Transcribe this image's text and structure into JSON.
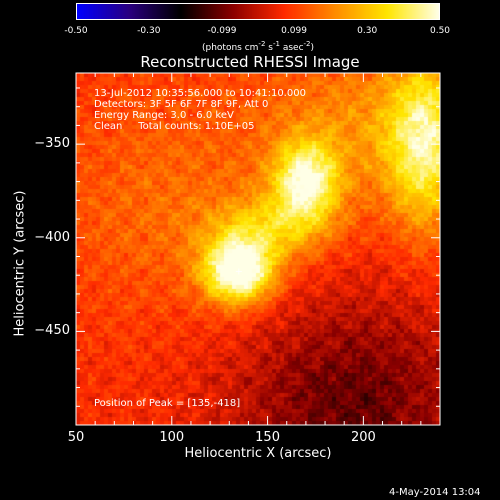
{
  "chart_data": {
    "type": "heatmap",
    "title": "Reconstructed RHESSI Image",
    "xlabel": "Heliocentric X (arcsec)",
    "ylabel": "Heliocentric Y (arcsec)",
    "xlim": [
      50,
      240
    ],
    "ylim": [
      -500,
      -312
    ],
    "x_ticks": [
      "50",
      "100",
      "150",
      "200"
    ],
    "x_tick_values": [
      50,
      100,
      150,
      200
    ],
    "y_ticks": [
      "-350",
      "-400",
      "-450"
    ],
    "y_tick_values": [
      -350,
      -400,
      -450
    ],
    "colorbar": {
      "range": [
        -0.5,
        0.5
      ],
      "tick_labels": [
        "-0.50",
        "-0.30",
        "-0.099",
        "0.099",
        "0.30",
        "0.50"
      ],
      "tick_values": [
        -0.5,
        -0.3,
        -0.099,
        0.099,
        0.3,
        0.5
      ],
      "units_parts": [
        "(photons cm",
        "-2",
        " s",
        "-1",
        " asec",
        "-2",
        ")"
      ],
      "colormap": [
        "#0000ff",
        "#2a0080",
        "#000000",
        "#8a0000",
        "#ff2a00",
        "#ff8c00",
        "#ffe600",
        "#ffffe6"
      ]
    },
    "annotations": [
      "13-Jul-2012 10:35:56.000 to 10:41:10.000",
      "Detectors: 3F 5F 6F 7F 8F 9F, Att 0",
      "Energy Range: 3.0 - 6.0 keV",
      "Clean     Total counts: 1.10E+05"
    ],
    "peak_label": "Position of Peak = [135,-418]",
    "peak": [
      135,
      -418
    ],
    "sources": [
      {
        "x": 135,
        "y": -418,
        "sx": 13,
        "sy": 12,
        "amp": 0.5
      },
      {
        "x": 170,
        "y": -370,
        "sx": 12,
        "sy": 15,
        "amp": 0.38
      },
      {
        "x": 150,
        "y": -395,
        "sx": 22,
        "sy": 12,
        "amp": 0.2
      },
      {
        "x": 232,
        "y": -350,
        "sx": 14,
        "sy": 32,
        "amp": 0.32
      },
      {
        "x": 200,
        "y": -340,
        "sx": 38,
        "sy": 30,
        "amp": 0.14
      },
      {
        "x": 95,
        "y": -380,
        "sx": 45,
        "sy": 45,
        "amp": 0.09
      }
    ],
    "background": {
      "plateau": 0.07,
      "negative_region": {
        "x": 195,
        "y": -490,
        "sx": 45,
        "sy": 40,
        "amp": -0.18
      }
    }
  },
  "footer": {
    "date": "4-May-2014 13:04"
  }
}
